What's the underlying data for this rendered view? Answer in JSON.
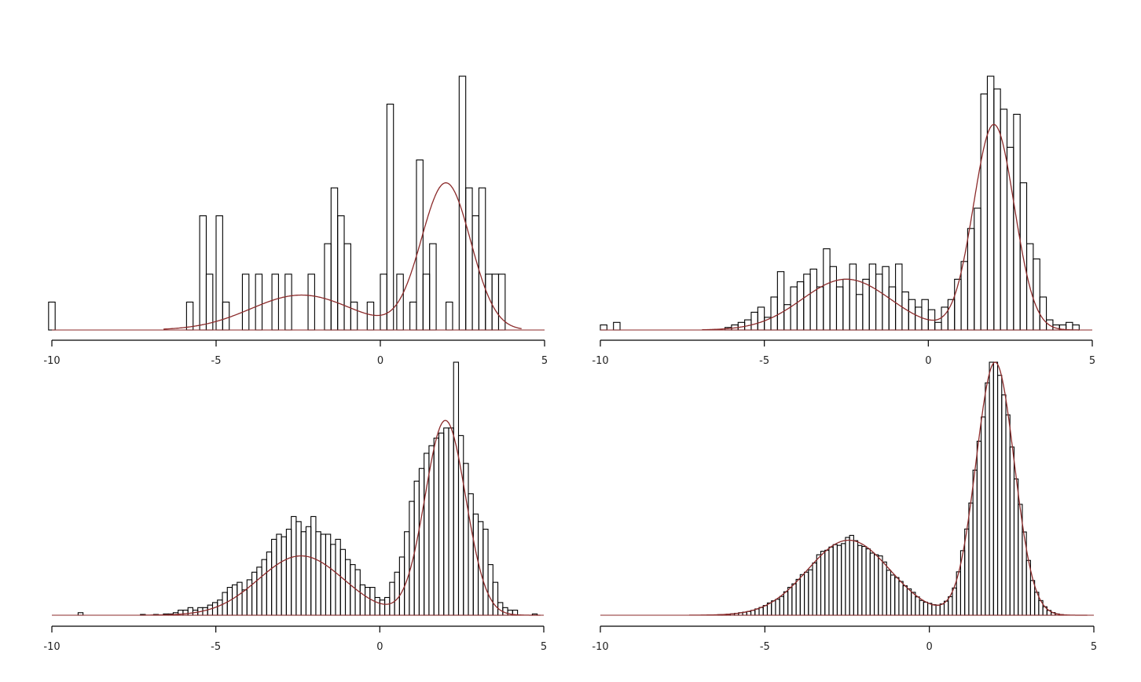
{
  "chart_data": [
    {
      "type": "bar",
      "xlim": [
        -10,
        5
      ],
      "ylim": [
        0,
        1
      ],
      "x_ticks": [
        -10,
        -5,
        0,
        5
      ],
      "x_tick_labels": [
        "-10",
        "-5",
        "0",
        "5"
      ],
      "bin_width": 0.2,
      "bins": [
        [
          -10.1,
          0.11
        ],
        [
          -5.9,
          0.11
        ],
        [
          -5.7,
          0
        ],
        [
          -5.5,
          0.45
        ],
        [
          -5.3,
          0.22
        ],
        [
          -5.1,
          0
        ],
        [
          -5.0,
          0.45
        ],
        [
          -4.8,
          0.11
        ],
        [
          -4.2,
          0.22
        ],
        [
          -3.8,
          0.22
        ],
        [
          -3.3,
          0.22
        ],
        [
          -2.9,
          0.22
        ],
        [
          -2.2,
          0.22
        ],
        [
          -1.7,
          0.34
        ],
        [
          -1.5,
          0.56
        ],
        [
          -1.3,
          0.45
        ],
        [
          -1.1,
          0.34
        ],
        [
          -0.9,
          0.11
        ],
        [
          -0.4,
          0.11
        ],
        [
          0.0,
          0.22
        ],
        [
          0.2,
          0.89
        ],
        [
          0.5,
          0.22
        ],
        [
          0.9,
          0.11
        ],
        [
          1.1,
          0.67
        ],
        [
          1.3,
          0.22
        ],
        [
          1.5,
          0.34
        ],
        [
          2.0,
          0.11
        ],
        [
          2.4,
          1.0
        ],
        [
          2.6,
          0.56
        ],
        [
          2.8,
          0.45
        ],
        [
          3.0,
          0.56
        ],
        [
          3.2,
          0.22
        ],
        [
          3.4,
          0.22
        ],
        [
          3.6,
          0.22
        ]
      ],
      "density": {
        "weights": [
          0.33,
          0.67
        ],
        "means": [
          -2.4,
          2.0
        ],
        "sds": [
          1.55,
          0.75
        ],
        "peak": 0.58,
        "range": [
          -6.6,
          4.3
        ]
      },
      "colors": {
        "bars": "#000000",
        "curve": "#8b2a2a"
      }
    },
    {
      "type": "bar",
      "xlim": [
        -10,
        5
      ],
      "ylim": [
        0,
        1
      ],
      "x_ticks": [
        -10,
        -5,
        0,
        5
      ],
      "x_tick_labels": [
        "-10",
        "-5",
        "0",
        "5"
      ],
      "bin_width": 0.2,
      "bins": [
        [
          -10.0,
          0.02
        ],
        [
          -9.6,
          0.03
        ],
        [
          -6.2,
          0.01
        ],
        [
          -6.0,
          0.02
        ],
        [
          -5.8,
          0.03
        ],
        [
          -5.6,
          0.04
        ],
        [
          -5.4,
          0.07
        ],
        [
          -5.2,
          0.09
        ],
        [
          -5.0,
          0.05
        ],
        [
          -4.8,
          0.13
        ],
        [
          -4.6,
          0.23
        ],
        [
          -4.4,
          0.1
        ],
        [
          -4.2,
          0.17
        ],
        [
          -4.0,
          0.19
        ],
        [
          -3.8,
          0.22
        ],
        [
          -3.6,
          0.24
        ],
        [
          -3.4,
          0.17
        ],
        [
          -3.2,
          0.32
        ],
        [
          -3.0,
          0.25
        ],
        [
          -2.8,
          0.17
        ],
        [
          -2.6,
          0.2
        ],
        [
          -2.4,
          0.26
        ],
        [
          -2.2,
          0.14
        ],
        [
          -2.0,
          0.2
        ],
        [
          -1.8,
          0.26
        ],
        [
          -1.6,
          0.22
        ],
        [
          -1.4,
          0.25
        ],
        [
          -1.2,
          0.17
        ],
        [
          -1.0,
          0.26
        ],
        [
          -0.8,
          0.15
        ],
        [
          -0.6,
          0.12
        ],
        [
          -0.4,
          0.09
        ],
        [
          -0.2,
          0.12
        ],
        [
          0.0,
          0.08
        ],
        [
          0.2,
          0.03
        ],
        [
          0.4,
          0.09
        ],
        [
          0.6,
          0.12
        ],
        [
          0.8,
          0.2
        ],
        [
          1.0,
          0.27
        ],
        [
          1.2,
          0.4
        ],
        [
          1.4,
          0.48
        ],
        [
          1.6,
          0.93
        ],
        [
          1.8,
          1.0
        ],
        [
          2.0,
          0.95
        ],
        [
          2.2,
          0.87
        ],
        [
          2.4,
          0.72
        ],
        [
          2.6,
          0.85
        ],
        [
          2.8,
          0.58
        ],
        [
          3.0,
          0.34
        ],
        [
          3.2,
          0.28
        ],
        [
          3.4,
          0.13
        ],
        [
          3.6,
          0.04
        ],
        [
          3.8,
          0.02
        ],
        [
          4.0,
          0.02
        ],
        [
          4.2,
          0.03
        ],
        [
          4.4,
          0.02
        ]
      ],
      "density": {
        "weights": [
          0.35,
          0.65
        ],
        "means": [
          -2.5,
          2.0
        ],
        "sds": [
          1.35,
          0.62
        ],
        "peak": 0.81,
        "range": [
          -6.9,
          4.6
        ]
      },
      "colors": {
        "bars": "#000000",
        "curve": "#8b2a2a"
      }
    },
    {
      "type": "bar",
      "xlim": [
        -10,
        5
      ],
      "ylim": [
        0,
        1
      ],
      "x_ticks": [
        -10,
        -5,
        0,
        5
      ],
      "x_tick_labels": [
        "-10",
        "-5",
        "0",
        "5"
      ],
      "bin_width": 0.15,
      "bins": [
        [
          -9.2,
          0.01
        ],
        [
          -7.3,
          0.003
        ],
        [
          -6.9,
          0.003
        ],
        [
          -6.6,
          0.005
        ],
        [
          -6.45,
          0.005
        ],
        [
          -6.3,
          0.01
        ],
        [
          -6.15,
          0.02
        ],
        [
          -6.0,
          0.02
        ],
        [
          -5.85,
          0.03
        ],
        [
          -5.7,
          0.02
        ],
        [
          -5.55,
          0.03
        ],
        [
          -5.4,
          0.03
        ],
        [
          -5.25,
          0.04
        ],
        [
          -5.1,
          0.05
        ],
        [
          -4.95,
          0.06
        ],
        [
          -4.8,
          0.09
        ],
        [
          -4.65,
          0.11
        ],
        [
          -4.5,
          0.12
        ],
        [
          -4.35,
          0.13
        ],
        [
          -4.2,
          0.1
        ],
        [
          -4.05,
          0.14
        ],
        [
          -3.9,
          0.17
        ],
        [
          -3.75,
          0.19
        ],
        [
          -3.6,
          0.22
        ],
        [
          -3.45,
          0.25
        ],
        [
          -3.3,
          0.3
        ],
        [
          -3.15,
          0.32
        ],
        [
          -3.0,
          0.31
        ],
        [
          -2.85,
          0.34
        ],
        [
          -2.7,
          0.39
        ],
        [
          -2.55,
          0.37
        ],
        [
          -2.4,
          0.33
        ],
        [
          -2.25,
          0.35
        ],
        [
          -2.1,
          0.39
        ],
        [
          -1.95,
          0.33
        ],
        [
          -1.8,
          0.32
        ],
        [
          -1.65,
          0.32
        ],
        [
          -1.5,
          0.28
        ],
        [
          -1.35,
          0.3
        ],
        [
          -1.2,
          0.26
        ],
        [
          -1.05,
          0.22
        ],
        [
          -0.9,
          0.2
        ],
        [
          -0.75,
          0.18
        ],
        [
          -0.6,
          0.12
        ],
        [
          -0.45,
          0.11
        ],
        [
          -0.3,
          0.11
        ],
        [
          -0.15,
          0.07
        ],
        [
          0.0,
          0.06
        ],
        [
          0.15,
          0.07
        ],
        [
          0.3,
          0.13
        ],
        [
          0.45,
          0.17
        ],
        [
          0.6,
          0.23
        ],
        [
          0.75,
          0.33
        ],
        [
          0.9,
          0.45
        ],
        [
          1.05,
          0.53
        ],
        [
          1.2,
          0.58
        ],
        [
          1.35,
          0.64
        ],
        [
          1.5,
          0.67
        ],
        [
          1.65,
          0.7
        ],
        [
          1.8,
          0.72
        ],
        [
          1.95,
          0.74
        ],
        [
          2.1,
          0.74
        ],
        [
          2.25,
          1.0
        ],
        [
          2.4,
          0.71
        ],
        [
          2.55,
          0.6
        ],
        [
          2.7,
          0.48
        ],
        [
          2.85,
          0.4
        ],
        [
          3.0,
          0.37
        ],
        [
          3.15,
          0.34
        ],
        [
          3.3,
          0.2
        ],
        [
          3.45,
          0.13
        ],
        [
          3.6,
          0.05
        ],
        [
          3.75,
          0.03
        ],
        [
          3.9,
          0.02
        ],
        [
          4.05,
          0.02
        ],
        [
          4.65,
          0.005
        ]
      ],
      "density": {
        "weights": [
          0.39,
          0.61
        ],
        "means": [
          -2.4,
          2.0
        ],
        "sds": [
          1.3,
          0.62
        ],
        "peak": 0.77,
        "range": [
          -7.2,
          4.9
        ]
      },
      "colors": {
        "bars": "#000000",
        "curve": "#8b2a2a"
      }
    },
    {
      "type": "bar",
      "xlim": [
        -10,
        5
      ],
      "ylim": [
        0,
        1
      ],
      "x_ticks": [
        -10,
        -5,
        0,
        5
      ],
      "x_tick_labels": [
        "-10",
        "-5",
        "0",
        "5"
      ],
      "bin_width": 0.125,
      "mixture_hist": true,
      "density": {
        "weights": [
          0.39,
          0.61
        ],
        "means": [
          -2.45,
          2.0
        ],
        "sds": [
          1.25,
          0.58
        ],
        "peak": 1.0,
        "range": [
          -7.3,
          4.8
        ]
      },
      "colors": {
        "bars": "#000000",
        "curve": "#8b2a2a"
      }
    }
  ]
}
